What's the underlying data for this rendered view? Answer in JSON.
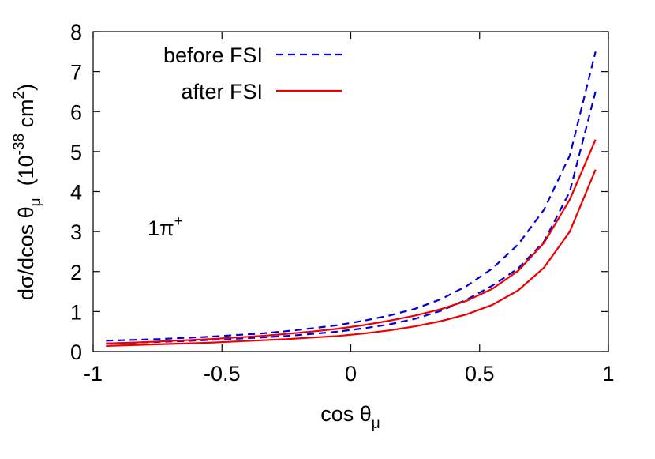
{
  "chart_data": {
    "type": "line",
    "xlabel": {
      "main": "cos θ",
      "sub": "μ"
    },
    "ylabel": {
      "prefix": "dσ/dcos θ",
      "sub": "μ",
      "unit_open": "  (10",
      "unit_exp": "-38",
      "unit_mid": " cm",
      "unit_exp2": "2",
      "unit_close": ")"
    },
    "xlim": [
      -1,
      1
    ],
    "ylim": [
      0,
      8
    ],
    "xticks": [
      -1,
      -0.5,
      0,
      0.5,
      1
    ],
    "xtick_labels": [
      "-1",
      "-0.5",
      "0",
      "0.5",
      "1"
    ],
    "yticks": [
      0,
      1,
      2,
      3,
      4,
      5,
      6,
      7,
      8
    ],
    "ytick_labels": [
      "0",
      "1",
      "2",
      "3",
      "4",
      "5",
      "6",
      "7",
      "8"
    ],
    "annotation": {
      "base": "1π",
      "sup": "+"
    },
    "legend_position": "top-left",
    "grid": false,
    "series": [
      {
        "name": "before FSI",
        "style": "dashed",
        "color": "#0000dd",
        "x": [
          -0.95,
          -0.85,
          -0.75,
          -0.65,
          -0.55,
          -0.45,
          -0.35,
          -0.25,
          -0.15,
          -0.05,
          0.05,
          0.15,
          0.25,
          0.35,
          0.45,
          0.55,
          0.65,
          0.75,
          0.85,
          0.95
        ],
        "values": [
          0.27,
          0.29,
          0.31,
          0.34,
          0.37,
          0.41,
          0.45,
          0.51,
          0.58,
          0.66,
          0.77,
          0.9,
          1.07,
          1.31,
          1.64,
          2.08,
          2.68,
          3.55,
          4.9,
          7.5
        ]
      },
      {
        "name": "",
        "style": "dashed",
        "color": "#0000dd",
        "x": [
          -0.95,
          -0.85,
          -0.75,
          -0.65,
          -0.55,
          -0.45,
          -0.35,
          -0.25,
          -0.15,
          -0.05,
          0.05,
          0.15,
          0.25,
          0.35,
          0.45,
          0.55,
          0.65,
          0.75,
          0.85,
          0.95
        ],
        "values": [
          0.2,
          0.22,
          0.24,
          0.26,
          0.29,
          0.32,
          0.35,
          0.39,
          0.44,
          0.5,
          0.58,
          0.68,
          0.82,
          1.02,
          1.3,
          1.65,
          2.08,
          2.75,
          4.0,
          6.5
        ]
      },
      {
        "name": "after FSI",
        "style": "solid",
        "color": "#ee0000",
        "x": [
          -0.95,
          -0.85,
          -0.75,
          -0.65,
          -0.55,
          -0.45,
          -0.35,
          -0.25,
          -0.15,
          -0.05,
          0.05,
          0.15,
          0.25,
          0.35,
          0.45,
          0.55,
          0.65,
          0.75,
          0.85,
          0.95
        ],
        "values": [
          0.2,
          0.22,
          0.25,
          0.28,
          0.31,
          0.35,
          0.39,
          0.44,
          0.5,
          0.57,
          0.66,
          0.77,
          0.9,
          1.06,
          1.27,
          1.57,
          2.02,
          2.72,
          3.8,
          5.3
        ]
      },
      {
        "name": "",
        "style": "solid",
        "color": "#ee0000",
        "x": [
          -0.95,
          -0.85,
          -0.75,
          -0.65,
          -0.55,
          -0.45,
          -0.35,
          -0.25,
          -0.15,
          -0.05,
          0.05,
          0.15,
          0.25,
          0.35,
          0.45,
          0.55,
          0.65,
          0.75,
          0.85,
          0.95
        ],
        "values": [
          0.14,
          0.16,
          0.18,
          0.2,
          0.22,
          0.25,
          0.28,
          0.31,
          0.35,
          0.39,
          0.45,
          0.53,
          0.63,
          0.76,
          0.93,
          1.17,
          1.53,
          2.1,
          3.0,
          4.55
        ]
      }
    ]
  }
}
